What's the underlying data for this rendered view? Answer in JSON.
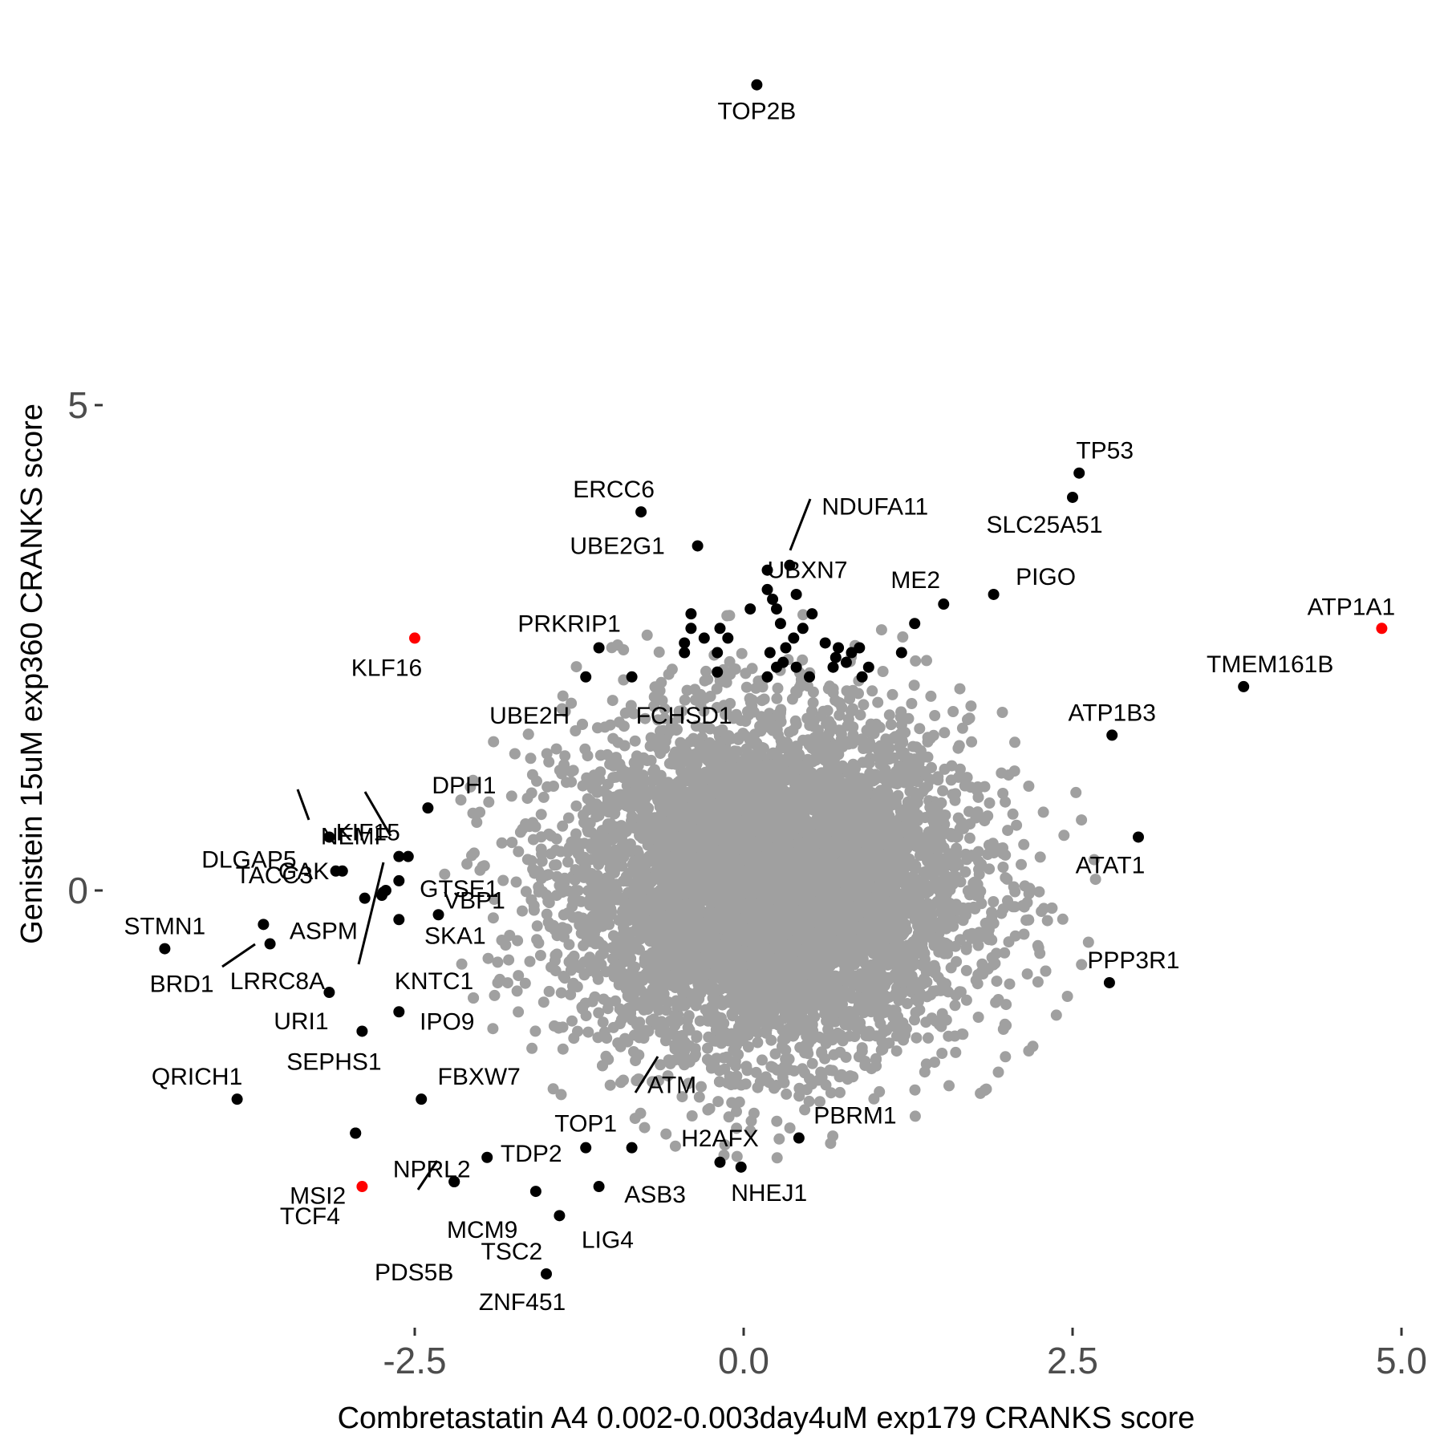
{
  "chart_data": {
    "type": "scatter",
    "xlabel": "Combretastatin A4 0.002-0.003day4uM exp179 CRANKS score",
    "ylabel": "Genistein 15uM exp360 CRANKS score",
    "xlim": [
      -5.0,
      5.0
    ],
    "ylim": [
      -4.6,
      8.4
    ],
    "x_ticks": [
      -2.5,
      0.0,
      2.5,
      5.0
    ],
    "x_tick_labels": [
      "-2.5",
      "0.0",
      "2.5",
      "5.0"
    ],
    "y_ticks": [
      0,
      5
    ],
    "y_tick_labels": [
      "0",
      "5"
    ],
    "grid": false,
    "legend": "none",
    "colors": {
      "background_point": "#a0a0a0",
      "highlight": "#000000",
      "special": "#ff0000"
    },
    "background_cloud": {
      "description_note": "",
      "center": [
        0.2,
        0.05
      ],
      "sd": [
        0.75,
        0.85
      ],
      "count": 7000
    },
    "points": [
      {
        "label": "TOP2B",
        "x": 0.1,
        "y": 8.3,
        "color": "black"
      },
      {
        "label": "TP53",
        "x": 2.55,
        "y": 4.3,
        "color": "black"
      },
      {
        "label": "SLC25A51",
        "x": 2.5,
        "y": 4.05,
        "color": "black"
      },
      {
        "label": "ERCC6",
        "x": -0.78,
        "y": 3.9,
        "color": "black"
      },
      {
        "label": "NDUFA11",
        "x": 0.35,
        "y": 3.35,
        "color": "black"
      },
      {
        "label": "UBE2G1",
        "x": -0.35,
        "y": 3.55,
        "color": "black"
      },
      {
        "label": "UBXN7",
        "x": 0.18,
        "y": 3.3,
        "color": "black"
      },
      {
        "label": "ME2",
        "x": 1.52,
        "y": 2.95,
        "color": "black"
      },
      {
        "label": "PIGO",
        "x": 1.9,
        "y": 3.05,
        "color": "black"
      },
      {
        "label": "ATP1A1",
        "x": 4.85,
        "y": 2.7,
        "color": "red"
      },
      {
        "label": "KLF16",
        "x": -2.5,
        "y": 2.6,
        "color": "red"
      },
      {
        "label": "PRKRIP1",
        "x": -1.1,
        "y": 2.5,
        "color": "black"
      },
      {
        "label": "TMEM161B",
        "x": 3.8,
        "y": 2.1,
        "color": "black"
      },
      {
        "label": "UBE2H",
        "x": -1.2,
        "y": 2.2,
        "color": "black"
      },
      {
        "label": "FCHSD1",
        "x": -0.85,
        "y": 2.2,
        "color": "black"
      },
      {
        "label": "ATP1B3",
        "x": 2.8,
        "y": 1.6,
        "color": "black"
      },
      {
        "label": "DPH1",
        "x": -2.4,
        "y": 0.85,
        "color": "black"
      },
      {
        "label": "DLGAP5",
        "x": -3.15,
        "y": 0.55,
        "color": "black"
      },
      {
        "label": "GAK",
        "x": -3.1,
        "y": 0.2,
        "color": "black"
      },
      {
        "label": "NEMF",
        "x": -2.62,
        "y": 0.35,
        "color": "black"
      },
      {
        "label": "KIF15",
        "x": -2.55,
        "y": 0.35,
        "color": "black"
      },
      {
        "label": "GTSE1",
        "x": -2.62,
        "y": 0.1,
        "color": "black"
      },
      {
        "label": "TACC3",
        "x": -3.05,
        "y": 0.2,
        "color": "black"
      },
      {
        "label": "VBP1",
        "x": -2.32,
        "y": -0.25,
        "color": "black"
      },
      {
        "label": "ATAT1",
        "x": 3.0,
        "y": 0.55,
        "color": "black"
      },
      {
        "label": "STMN1",
        "x": -4.4,
        "y": -0.6,
        "color": "black"
      },
      {
        "label": "ASPM",
        "x": -3.65,
        "y": -0.35,
        "color": "black"
      },
      {
        "label": "SKA1",
        "x": -2.62,
        "y": -0.3,
        "color": "black"
      },
      {
        "label": "BRD1",
        "x": -3.6,
        "y": -0.55,
        "color": "black"
      },
      {
        "label": "LRRC8A",
        "x": -2.72,
        "y": 0.0,
        "color": "black"
      },
      {
        "label": "KNTC1",
        "x": -2.75,
        "y": -0.05,
        "color": "black"
      },
      {
        "label": "PPP3R1",
        "x": 2.78,
        "y": -0.95,
        "color": "black"
      },
      {
        "label": "URI1",
        "x": -3.15,
        "y": -1.05,
        "color": "black"
      },
      {
        "label": "IPO9",
        "x": -2.62,
        "y": -1.25,
        "color": "black"
      },
      {
        "label": "SEPHS1",
        "x": -2.9,
        "y": -1.45,
        "color": "black"
      },
      {
        "label": "QRICH1",
        "x": -3.85,
        "y": -2.15,
        "color": "black"
      },
      {
        "label": "FBXW7",
        "x": -2.45,
        "y": -2.15,
        "color": "black"
      },
      {
        "label": "ATM",
        "x": -0.85,
        "y": -2.65,
        "color": "black"
      },
      {
        "label": "TOP1",
        "x": -1.2,
        "y": -2.65,
        "color": "black"
      },
      {
        "label": "H2AFX",
        "x": -0.18,
        "y": -2.8,
        "color": "black"
      },
      {
        "label": "PBRM1",
        "x": 0.42,
        "y": -2.55,
        "color": "black"
      },
      {
        "label": "NHEJ1",
        "x": -0.02,
        "y": -2.85,
        "color": "black"
      },
      {
        "label": "NPRL2",
        "x": -2.95,
        "y": -2.5,
        "color": "black"
      },
      {
        "label": "MSI2",
        "x": -2.95,
        "y": -2.5,
        "color": "black"
      },
      {
        "label": "TDP2",
        "x": -1.95,
        "y": -2.75,
        "color": "black"
      },
      {
        "label": "ASB3",
        "x": -1.1,
        "y": -3.05,
        "color": "black"
      },
      {
        "label": "TCF4",
        "x": -2.9,
        "y": -3.05,
        "color": "red"
      },
      {
        "label": "MCM9",
        "x": -2.2,
        "y": -3.0,
        "color": "black"
      },
      {
        "label": "PDS5B",
        "x": -2.2,
        "y": -3.0,
        "color": "black"
      },
      {
        "label": "LIG4",
        "x": -1.4,
        "y": -3.35,
        "color": "black"
      },
      {
        "label": "TSC2",
        "x": -1.58,
        "y": -3.1,
        "color": "black"
      },
      {
        "label": "ZNF451",
        "x": -1.5,
        "y": -3.95,
        "color": "black"
      }
    ],
    "unlabeled_highlight_points": [
      [
        0.18,
        3.1
      ],
      [
        0.22,
        3.0
      ],
      [
        0.25,
        2.9
      ],
      [
        0.4,
        3.05
      ],
      [
        0.05,
        2.9
      ],
      [
        0.28,
        2.75
      ],
      [
        -0.4,
        2.85
      ],
      [
        -0.4,
        2.7
      ],
      [
        -0.45,
        2.55
      ],
      [
        -0.3,
        2.6
      ],
      [
        -0.18,
        2.7
      ],
      [
        -0.12,
        2.6
      ],
      [
        0.52,
        2.85
      ],
      [
        0.62,
        2.55
      ],
      [
        0.72,
        2.5
      ],
      [
        0.88,
        2.5
      ],
      [
        1.2,
        2.45
      ],
      [
        1.3,
        2.75
      ],
      [
        0.38,
        2.6
      ],
      [
        0.32,
        2.5
      ],
      [
        0.2,
        2.45
      ],
      [
        0.45,
        2.7
      ],
      [
        0.3,
        2.35
      ],
      [
        0.4,
        2.3
      ],
      [
        -0.2,
        2.45
      ],
      [
        -0.45,
        2.45
      ],
      [
        0.78,
        2.35
      ],
      [
        0.95,
        2.3
      ],
      [
        0.82,
        2.45
      ],
      [
        0.68,
        2.3
      ],
      [
        0.5,
        2.2
      ],
      [
        0.18,
        2.2
      ],
      [
        -0.2,
        2.25
      ],
      [
        0.9,
        2.2
      ],
      [
        0.7,
        2.4
      ],
      [
        0.25,
        2.3
      ],
      [
        -2.88,
        -0.08
      ],
      [
        -2.74,
        -0.02
      ]
    ]
  }
}
